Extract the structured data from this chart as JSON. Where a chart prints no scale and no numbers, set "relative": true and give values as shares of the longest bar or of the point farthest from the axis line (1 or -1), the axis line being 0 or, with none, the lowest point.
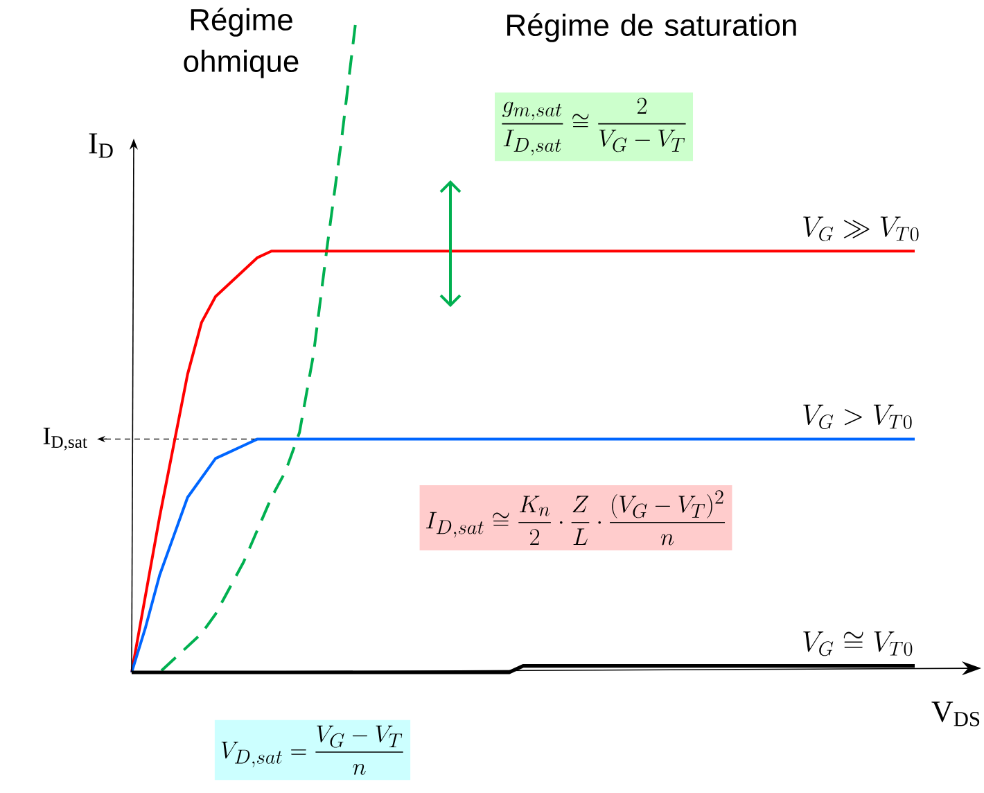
{
  "chart_data": {
    "type": "line",
    "relative": true,
    "categories": [
      null,
      null,
      null,
      null,
      null,
      null,
      null,
      null,
      null,
      null,
      null,
      null,
      null,
      null,
      null,
      null,
      null,
      null,
      null,
      null,
      null,
      null,
      null,
      null,
      null,
      null,
      null,
      null,
      null,
      null,
      null,
      null,
      null,
      null,
      null,
      null,
      null,
      null,
      null,
      null,
      null,
      null,
      null,
      null,
      null,
      null,
      null,
      null,
      null,
      null,
      null,
      null,
      null,
      null,
      null,
      null,
      null
    ],
    "xlabel": "V$_{DS}$",
    "ylabel": "I$_{D}$",
    "series": [
      {
        "name": "V_G \\gg V_{T0}",
        "color": "#ff0000",
        "values": [
          0,
          0.12,
          0.24,
          0.35,
          0.46,
          0.54,
          0.58,
          0.6,
          0.62,
          0.64,
          0.65,
          0.65,
          0.65,
          0.65,
          0.65,
          0.65,
          0.65,
          0.65,
          0.65,
          0.65,
          0.65,
          0.65,
          0.65,
          0.65,
          0.65,
          0.65,
          0.65,
          0.65,
          0.65,
          0.65,
          0.65,
          0.65,
          0.65,
          0.65,
          0.65,
          0.65,
          0.65,
          0.65,
          0.65,
          0.65,
          0.65,
          0.65,
          0.65,
          0.65,
          0.65,
          0.65,
          0.65,
          0.65,
          0.65,
          0.65,
          0.65,
          0.65,
          0.65,
          0.65,
          0.65,
          0.65,
          0.65
        ]
      },
      {
        "name": "V_G > V_{T0}",
        "color": "#0066ff",
        "values": [
          0,
          0.07,
          0.15,
          0.21,
          0.27,
          0.3,
          0.33,
          0.34,
          0.35,
          0.36,
          0.36,
          0.36,
          0.36,
          0.36,
          0.36,
          0.36,
          0.36,
          0.36,
          0.36,
          0.36,
          0.36,
          0.36,
          0.36,
          0.36,
          0.36,
          0.36,
          0.36,
          0.36,
          0.36,
          0.36,
          0.36,
          0.36,
          0.36,
          0.36,
          0.36,
          0.36,
          0.36,
          0.36,
          0.36,
          0.36,
          0.36,
          0.36,
          0.36,
          0.36,
          0.36,
          0.36,
          0.36,
          0.36,
          0.36,
          0.36,
          0.36,
          0.36,
          0.36,
          0.36,
          0.36,
          0.36,
          0.36
        ]
      },
      {
        "name": "V_G \\cong V_{T0}",
        "color": "#000000",
        "values": [
          0,
          0,
          0,
          0,
          0,
          0,
          0,
          0,
          0,
          0,
          0,
          0,
          0,
          0,
          0,
          0,
          0,
          0,
          0,
          0,
          0,
          0,
          0,
          0,
          0,
          0,
          0,
          0,
          0.01,
          0.01,
          0.01,
          0.01,
          0.01,
          0.01,
          0.01,
          0.01,
          0.01,
          0.01,
          0.01,
          0.01,
          0.01,
          0.01,
          0.01,
          0.01,
          0.01,
          0.01,
          0.01,
          0.01,
          0.01,
          0.01,
          0.01,
          0.01,
          0.01,
          0.01,
          0.01,
          0.01,
          0.01
        ]
      },
      {
        "color": "#00b050",
        "line_style": "dashed",
        "values": [
          0,
          0,
          0,
          0.02,
          0.04,
          0.06,
          0.09,
          0.13,
          0.17,
          0.22,
          0.27,
          0.31,
          0.37,
          0.49,
          0.66,
          0.82,
          1.0,
          null,
          null,
          null,
          null,
          null,
          null,
          null,
          null,
          null,
          null,
          null,
          null,
          null,
          null,
          null,
          null,
          null,
          null,
          null,
          null,
          null,
          null,
          null,
          null,
          null,
          null,
          null,
          null,
          null,
          null,
          null,
          null,
          null,
          null,
          null,
          null,
          null,
          null,
          null,
          null
        ]
      }
    ],
    "ref_lines": [
      {
        "axis": "y",
        "value": 0.36,
        "label": "I$_{D,sat}$",
        "color": "#000000",
        "line_style": "dashed"
      }
    ],
    "annotations": [
      "Régime ohmique",
      "Régime de saturation",
      "\\frac{g_{m,sat}}{I_{D,sat}} \\cong \\frac{2}{V_G - V_T}",
      "I_{D,sat} \\cong \\frac{K_n}{2}\\cdot\\frac{Z}{L}\\cdot\\frac{(V_G - V_T)^2}{n}",
      "V_{D,sat} = \\frac{V_G - V_T}{n}"
    ]
  }
}
